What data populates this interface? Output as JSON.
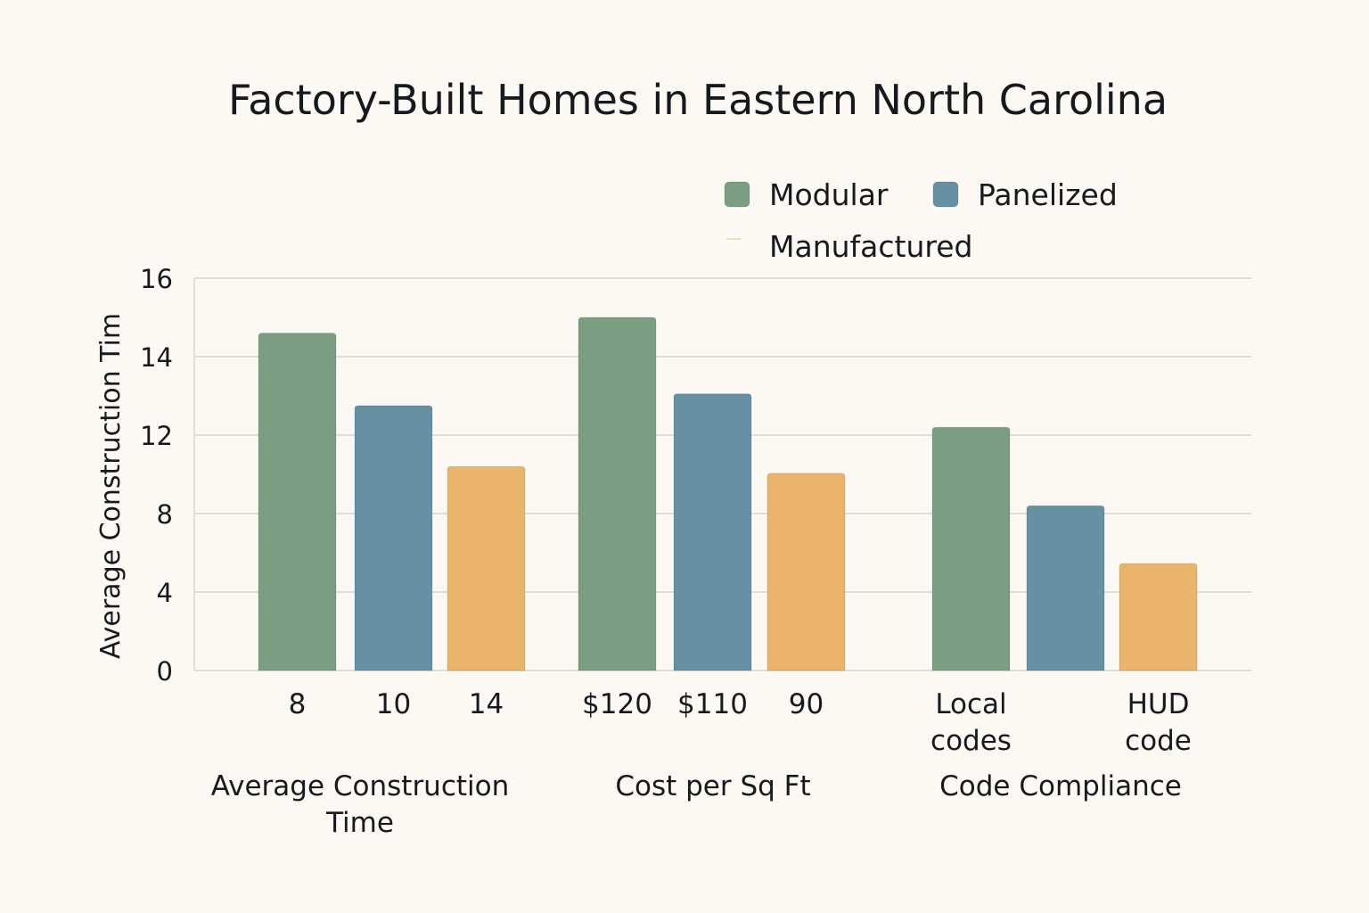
{
  "chart_data": {
    "type": "bar",
    "title": "Factory-Built Homes in Eastern North Carolina",
    "ylabel": "Average Construction Tim",
    "yticks": [
      0,
      4,
      8,
      12,
      14,
      16
    ],
    "ylim": [
      0,
      16
    ],
    "grid": true,
    "legend_placement": "top-right",
    "series": [
      {
        "name": "Modular",
        "color": "#7b9e83"
      },
      {
        "name": "Panelized",
        "color": "#6690a3"
      },
      {
        "name": "Manufactured",
        "color": "#ebb46c"
      }
    ],
    "groups": [
      {
        "label": "Average Construction Time",
        "bar_labels": [
          "8",
          "10",
          "14"
        ],
        "values": [
          14.6,
          12.75,
          10.4
        ]
      },
      {
        "label": "Cost per Sq Ft",
        "bar_labels": [
          "$120",
          "$110",
          "90"
        ],
        "values": [
          15.0,
          13.05,
          10.05
        ]
      },
      {
        "label": "Code Compliance",
        "bar_labels": [
          "Local codes",
          "",
          "HUD code"
        ],
        "values": [
          12.2,
          8.4,
          5.45
        ]
      }
    ]
  }
}
